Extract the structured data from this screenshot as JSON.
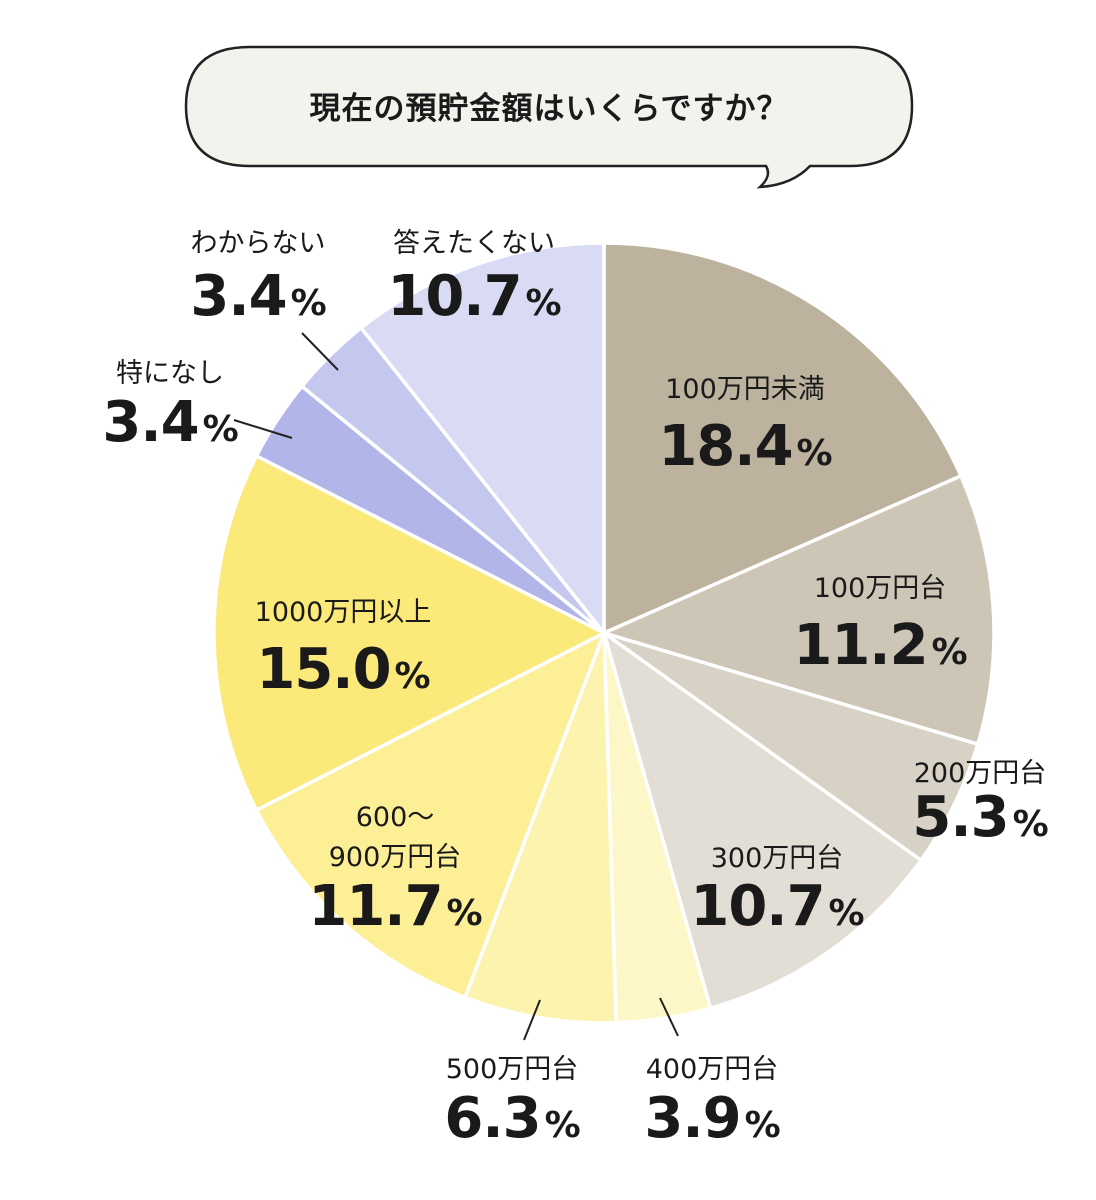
{
  "chart_data": {
    "type": "pie",
    "title": "現在の預貯金額はいくらですか？",
    "slices": [
      {
        "name": "100万円未満",
        "label_lines": [
          "100万円未満"
        ],
        "value": 18.4,
        "display": "18.4",
        "unit": "%",
        "color": "#BCB29E"
      },
      {
        "name": "100万円台",
        "label_lines": [
          "100万円台"
        ],
        "value": 11.2,
        "display": "11.2",
        "unit": "%",
        "color": "#CDC6B6"
      },
      {
        "name": "200万円台",
        "label_lines": [
          "200万円台"
        ],
        "value": 5.3,
        "display": "5.3",
        "unit": "%",
        "color": "#D7D2C5"
      },
      {
        "name": "300万円台",
        "label_lines": [
          "300万円台"
        ],
        "value": 10.7,
        "display": "10.7",
        "unit": "%",
        "color": "#E2DED5"
      },
      {
        "name": "400万円台",
        "label_lines": [
          "400万円台"
        ],
        "value": 3.9,
        "display": "3.9",
        "unit": "%",
        "color": "#FDF7C8"
      },
      {
        "name": "500万円台",
        "label_lines": [
          "500万円台"
        ],
        "value": 6.3,
        "display": "6.3",
        "unit": "%",
        "color": "#FCF4AE"
      },
      {
        "name": "600～900万円台",
        "label_lines": [
          "600～",
          "900万円台"
        ],
        "value": 11.7,
        "display": "11.7",
        "unit": "%",
        "color": "#FCEF96"
      },
      {
        "name": "1000万円以上",
        "label_lines": [
          "1000万円以上"
        ],
        "value": 15.0,
        "display": "15.0",
        "unit": "%",
        "color": "#FBE97A"
      },
      {
        "name": "特になし",
        "label_lines": [
          "特になし"
        ],
        "value": 3.4,
        "display": "3.4",
        "unit": "%",
        "color": "#B1B5E8"
      },
      {
        "name": "わからない",
        "label_lines": [
          "わからない"
        ],
        "value": 3.4,
        "display": "3.4",
        "unit": "%",
        "color": "#C5C8EE"
      },
      {
        "name": "答えたくない",
        "label_lines": [
          "答えたくない"
        ],
        "value": 10.7,
        "display": "10.7",
        "unit": "%",
        "color": "#D9DBF5"
      }
    ]
  }
}
